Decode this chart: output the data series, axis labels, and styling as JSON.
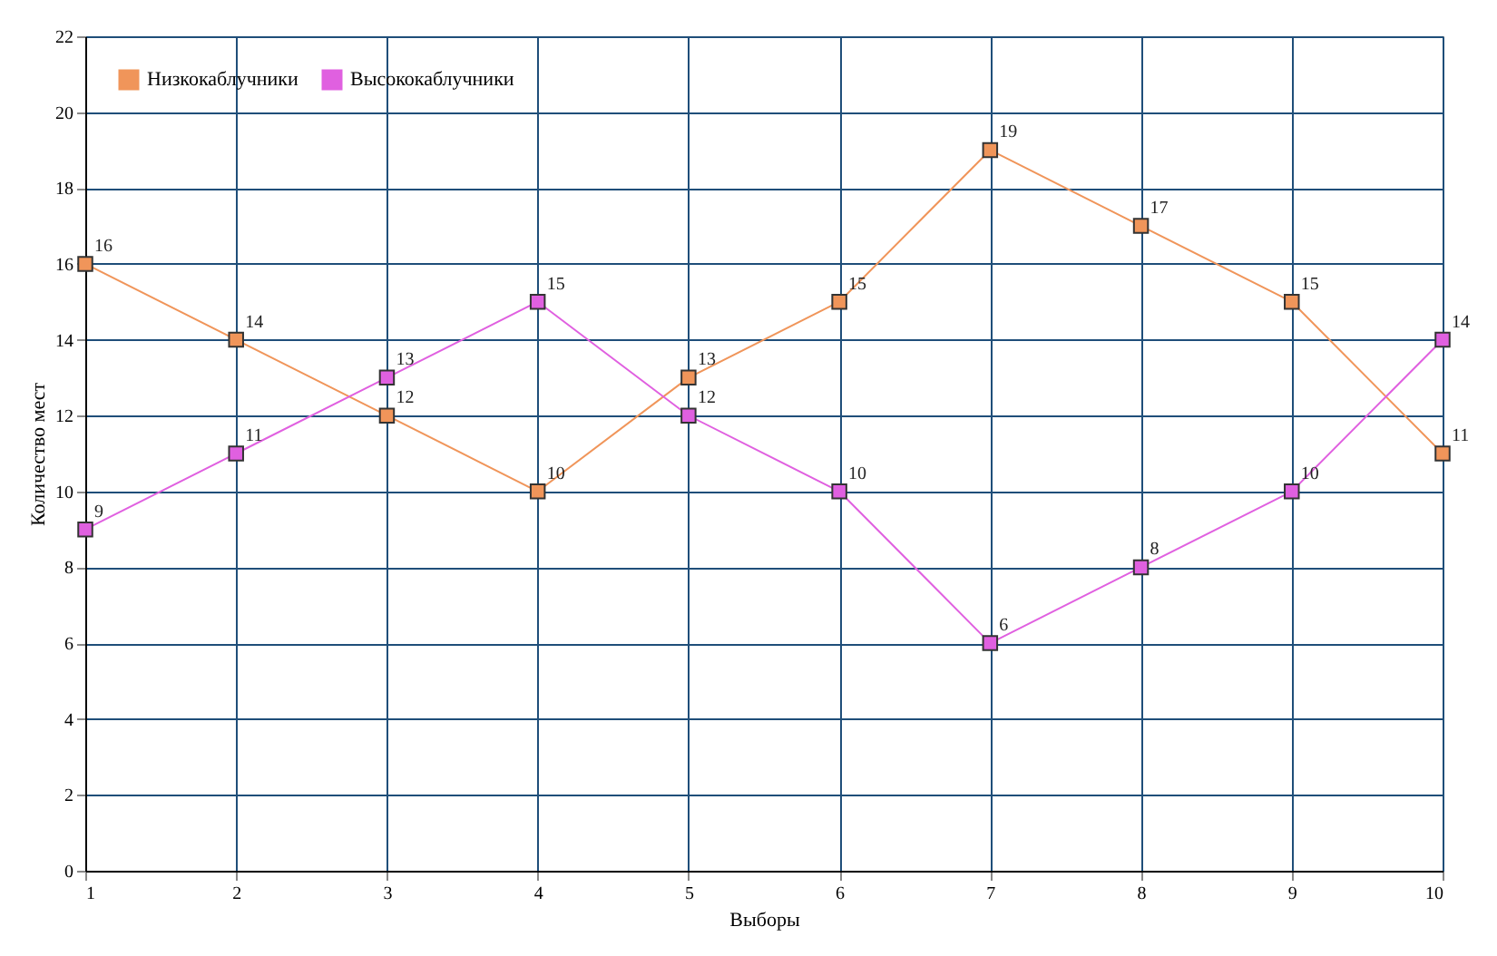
{
  "chart_data": {
    "type": "line",
    "xlabel": "Выборы",
    "ylabel": "Количество мест",
    "x": [
      1,
      2,
      3,
      4,
      5,
      6,
      7,
      8,
      9,
      10
    ],
    "series": [
      {
        "name": "Низкокаблучники",
        "color": "#f0955a",
        "values": [
          16,
          14,
          12,
          10,
          13,
          15,
          19,
          17,
          15,
          11
        ]
      },
      {
        "name": "Высококаблучники",
        "color": "#e060e0",
        "values": [
          9,
          11,
          13,
          15,
          12,
          10,
          6,
          8,
          10,
          14
        ]
      }
    ],
    "xlim": [
      1,
      10
    ],
    "xticks": [
      1,
      2,
      3,
      4,
      5,
      6,
      7,
      8,
      9,
      10
    ],
    "ylim": [
      0,
      22
    ],
    "yticks": [
      0,
      2,
      4,
      6,
      8,
      10,
      12,
      14,
      16,
      18,
      20,
      22
    ],
    "grid": true,
    "legend": "top left",
    "marker": "square",
    "line_style": "solid",
    "data_labels": true
  }
}
